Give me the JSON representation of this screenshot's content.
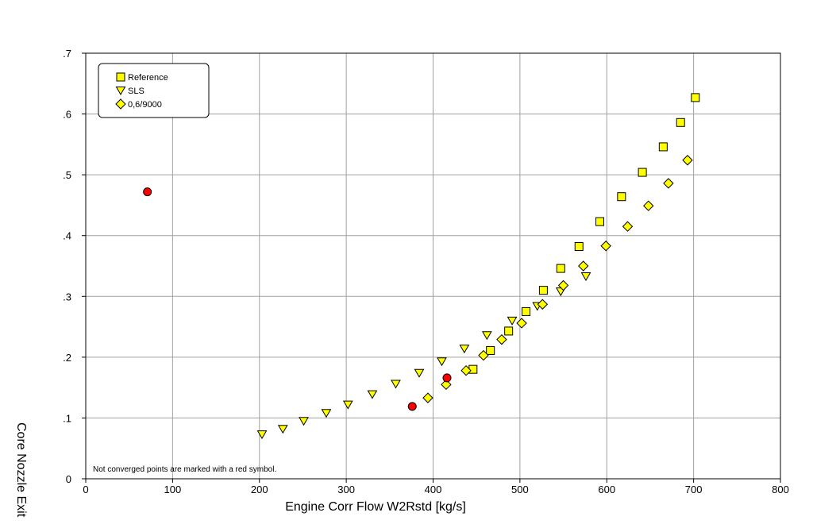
{
  "chart_data": {
    "type": "scatter",
    "xlabel": "Engine Corr Flow W2Rstd [kg/s]",
    "ylabel": "Core Nozzle Exit",
    "xlim": [
      0,
      800
    ],
    "ylim": [
      0,
      0.7
    ],
    "x_ticks": [
      0,
      100,
      200,
      300,
      400,
      500,
      600,
      700,
      800
    ],
    "y_ticks": [
      0,
      0.1,
      0.2,
      0.3,
      0.4,
      0.5,
      0.6,
      0.7
    ],
    "x_tick_labels": [
      "0",
      "100",
      "200",
      "300",
      "400",
      "500",
      "600",
      "700",
      "800"
    ],
    "y_tick_labels": [
      "0",
      ".1",
      ".2",
      ".3",
      ".4",
      ".5",
      ".6",
      ".7"
    ],
    "grid": true,
    "legend_position": "top-left",
    "annotation": "Not converged points are marked with a red symbol.",
    "series": [
      {
        "name": "Reference",
        "marker": "square",
        "color": "#ffff00",
        "points": [
          [
            446,
            0.18
          ],
          [
            466,
            0.211
          ],
          [
            487,
            0.243
          ],
          [
            507,
            0.275
          ],
          [
            527,
            0.31
          ],
          [
            547,
            0.346
          ],
          [
            568,
            0.382
          ],
          [
            592,
            0.423
          ],
          [
            617,
            0.464
          ],
          [
            641,
            0.504
          ],
          [
            665,
            0.546
          ],
          [
            685,
            0.586
          ],
          [
            702,
            0.627
          ]
        ]
      },
      {
        "name": "SLS",
        "marker": "triangle-down",
        "color": "#ffff00",
        "points": [
          [
            203,
            0.073
          ],
          [
            227,
            0.082
          ],
          [
            251,
            0.095
          ],
          [
            277,
            0.108
          ],
          [
            302,
            0.122
          ],
          [
            330,
            0.139
          ],
          [
            357,
            0.156
          ],
          [
            384,
            0.174
          ],
          [
            410,
            0.193
          ],
          [
            436,
            0.214
          ],
          [
            462,
            0.236
          ],
          [
            491,
            0.26
          ],
          [
            520,
            0.284
          ],
          [
            547,
            0.308
          ],
          [
            576,
            0.333
          ]
        ]
      },
      {
        "name": "0,6/9000",
        "marker": "diamond",
        "color": "#ffff00",
        "points": [
          [
            394,
            0.133
          ],
          [
            415,
            0.155
          ],
          [
            438,
            0.178
          ],
          [
            458,
            0.203
          ],
          [
            479,
            0.229
          ],
          [
            502,
            0.256
          ],
          [
            526,
            0.287
          ],
          [
            550,
            0.318
          ],
          [
            573,
            0.35
          ],
          [
            599,
            0.383
          ],
          [
            624,
            0.415
          ],
          [
            648,
            0.449
          ],
          [
            671,
            0.486
          ],
          [
            693,
            0.524
          ]
        ]
      }
    ],
    "not_converged": {
      "marker": "circle",
      "color": "#ff0000",
      "points": [
        [
          71,
          0.472
        ],
        [
          376,
          0.119
        ],
        [
          416,
          0.166
        ]
      ]
    }
  }
}
